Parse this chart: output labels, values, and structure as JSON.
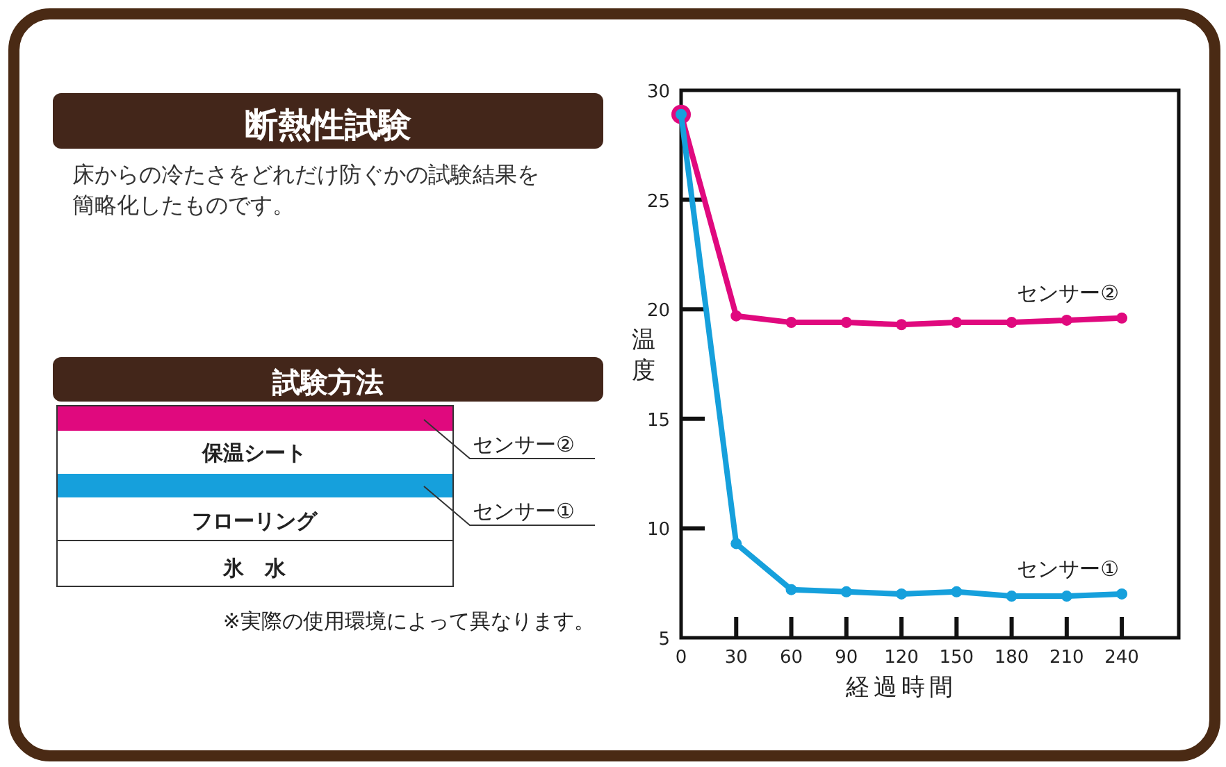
{
  "chart_data": [
    {
      "type": "other",
      "title": "断熱性試験",
      "subtitle": "床からの冷たさをどれだけ防ぐかの試験結果を簡略化したものです。",
      "annotations": [
        "試験方法",
        "保温シート",
        "フローリング",
        "氷　水",
        "センサー②",
        "センサー①",
        "※実際の使用環境によって異なります。"
      ]
    },
    {
      "type": "line",
      "xlabel": "経過時間",
      "ylabel": "温度",
      "x": [
        0,
        30,
        60,
        90,
        120,
        150,
        180,
        210,
        240
      ],
      "xlim": [
        0,
        271
      ],
      "xticks": [
        0,
        30,
        60,
        90,
        120,
        150,
        180,
        210,
        240
      ],
      "ylim": [
        5,
        30
      ],
      "yticks": [
        5,
        10,
        15,
        20,
        25,
        30
      ],
      "grid": false,
      "legend": false,
      "marker": "circle",
      "line_style": "solid",
      "series": [
        {
          "name": "センサー②",
          "color": "#e0097e",
          "values": [
            28.9,
            19.7,
            19.4,
            19.4,
            19.3,
            19.4,
            19.4,
            19.5,
            19.6
          ]
        },
        {
          "name": "センサー①",
          "color": "#16a0dc",
          "values": [
            28.9,
            9.3,
            7.2,
            7.1,
            7.0,
            7.1,
            6.9,
            6.9,
            7.0
          ]
        }
      ]
    }
  ]
}
